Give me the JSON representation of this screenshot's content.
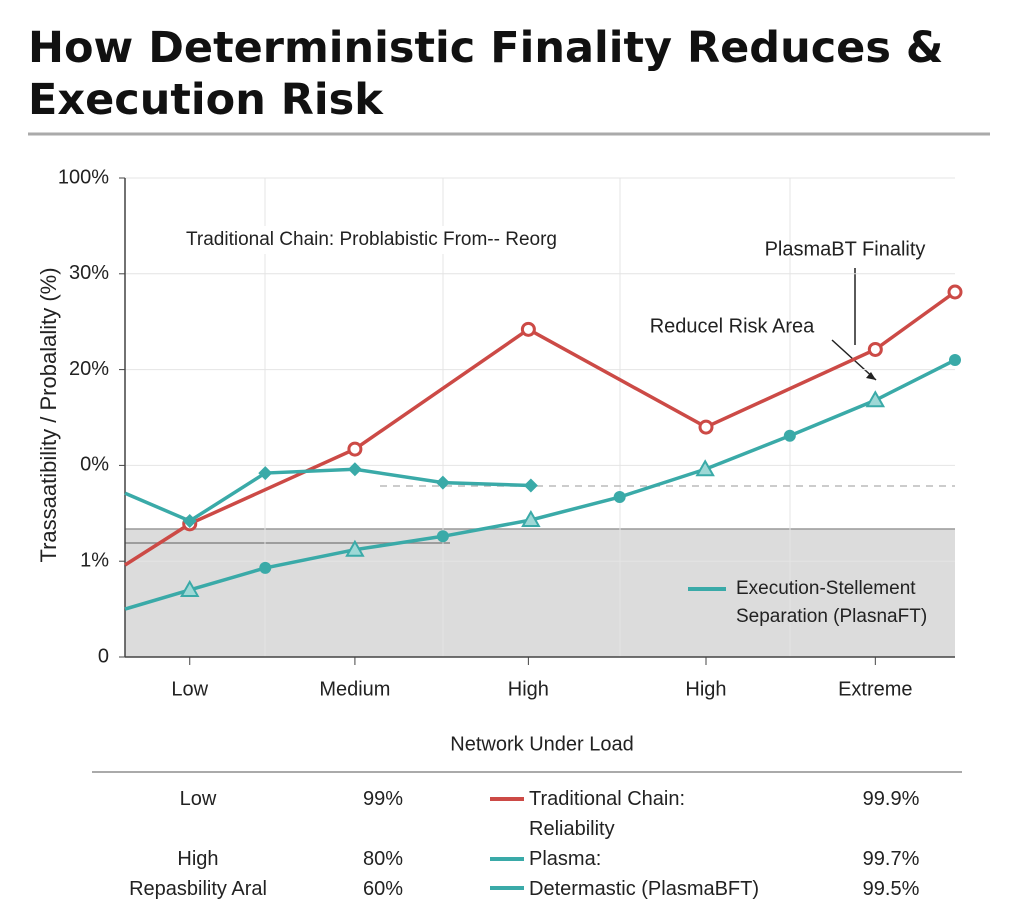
{
  "chart_data": {
    "type": "line",
    "title": "How Deterministic Finality Reduces & Execution Risk",
    "xlabel": "Network Under Load",
    "ylabel": "Trassaatibility / Probalality (%)",
    "xlim": [
      0,
      10
    ],
    "xticks": [
      {
        "value": 0.78,
        "label": "Low"
      },
      {
        "value": 2.77,
        "label": "Medium"
      },
      {
        "value": 4.86,
        "label": "High"
      },
      {
        "value": 7.0,
        "label": "High"
      },
      {
        "value": 9.04,
        "label": "Extreme"
      }
    ],
    "ylim": [
      0,
      5
    ],
    "yticks": [
      {
        "value": 0,
        "label": "0"
      },
      {
        "value": 1,
        "label": "1%"
      },
      {
        "value": 2,
        "label": "0%"
      },
      {
        "value": 3,
        "label": "20%"
      },
      {
        "value": 4,
        "label": "30%"
      },
      {
        "value": 5,
        "label": "100%"
      }
    ],
    "grid": true,
    "series": [
      {
        "name": "Traditional Chain: Problabistic From-- Reorg",
        "color": "#cc4a46",
        "x": [
          0,
          0.78,
          2.77,
          4.86,
          7.0,
          9.04,
          10.0
        ],
        "values": [
          0.96,
          1.39,
          2.17,
          3.42,
          2.4,
          3.21,
          3.81
        ]
      },
      {
        "color": "#3aaaa8",
        "x": [
          0,
          0.78,
          1.69,
          2.77,
          3.83,
          4.89
        ],
        "values": [
          1.71,
          1.42,
          1.92,
          1.96,
          1.82,
          1.79
        ]
      },
      {
        "name": "Execution-Stellement Separation (PlasnaFT)",
        "color": "#3aaaa8",
        "x": [
          0,
          0.78,
          1.69,
          2.77,
          3.83,
          4.89,
          5.96,
          6.99,
          8.01,
          9.04,
          10.0
        ],
        "values": [
          0.5,
          0.7,
          0.93,
          1.12,
          1.26,
          1.43,
          1.67,
          1.96,
          2.31,
          2.68,
          3.1
        ]
      }
    ],
    "annotations": [
      "PlasmaBT Finality",
      "Reducel Risk Area"
    ]
  },
  "table": {
    "rows": [
      [
        "Low",
        "99%",
        "Traditional Chain: Reliability",
        "99.9%"
      ],
      [
        "High",
        "80%",
        "Plasma:",
        "99.7%"
      ],
      [
        "Repasbility Aral",
        "60%",
        "Determastic (PlasmaBFT)",
        "99.5%"
      ]
    ]
  }
}
